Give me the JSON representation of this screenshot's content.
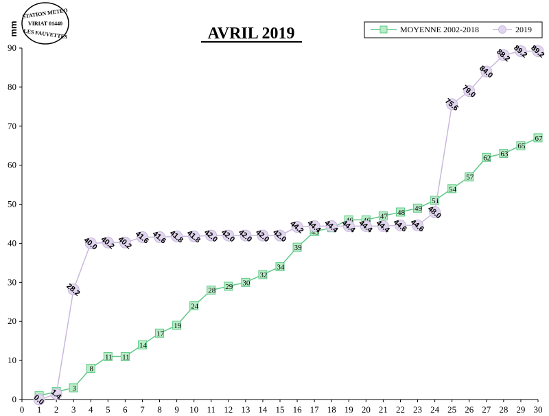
{
  "stamp": {
    "line1": "STATION METEO",
    "line2": "VIRIAT 01440",
    "line3": "LES FAUVETTES"
  },
  "chart_data": {
    "type": "line",
    "title": "AVRIL 2019",
    "xlabel": "",
    "ylabel": "mm",
    "xlim": [
      0,
      30
    ],
    "ylim": [
      0,
      90
    ],
    "x_ticks": [
      0,
      1,
      2,
      3,
      4,
      5,
      6,
      7,
      8,
      9,
      10,
      11,
      12,
      13,
      14,
      15,
      16,
      17,
      18,
      19,
      20,
      21,
      22,
      23,
      24,
      25,
      26,
      27,
      28,
      29,
      30
    ],
    "y_ticks": [
      0,
      10,
      20,
      30,
      40,
      50,
      60,
      70,
      80,
      90
    ],
    "grid": false,
    "legend_position": "top-right",
    "series": [
      {
        "name": "MOYENNE 2002-2018",
        "marker": "square",
        "color": "#5fc987",
        "x": [
          1,
          2,
          3,
          4,
          5,
          6,
          7,
          8,
          9,
          10,
          11,
          12,
          13,
          14,
          15,
          16,
          17,
          18,
          19,
          20,
          21,
          22,
          23,
          24,
          25,
          26,
          27,
          28,
          29,
          30
        ],
        "values": [
          1,
          2,
          3,
          8,
          11,
          11,
          14,
          17,
          19,
          24,
          28,
          29,
          30,
          32,
          34,
          39,
          43,
          44,
          46,
          46,
          47,
          48,
          49,
          51,
          54,
          57,
          62,
          63,
          65,
          67
        ],
        "labels": [
          "1",
          "2",
          "3",
          "8",
          "11",
          "11",
          "14",
          "17",
          "19",
          "24",
          "28",
          "29",
          "30",
          "32",
          "34",
          "39",
          "43",
          "44",
          "46",
          "46",
          "47",
          "48",
          "49",
          "51",
          "54",
          "57",
          "62",
          "63",
          "65",
          "67"
        ]
      },
      {
        "name": "2019",
        "marker": "circle",
        "color": "#c9b8dc",
        "x": [
          1,
          2,
          3,
          4,
          5,
          6,
          7,
          8,
          9,
          10,
          11,
          12,
          13,
          14,
          15,
          16,
          17,
          18,
          19,
          20,
          21,
          22,
          23,
          24,
          25,
          26,
          27,
          28,
          29,
          30
        ],
        "values": [
          0.0,
          1.4,
          28.2,
          40.0,
          40.2,
          40.2,
          41.6,
          41.6,
          41.8,
          41.8,
          42.0,
          42.0,
          42.0,
          42.0,
          42.0,
          44.2,
          44.4,
          44.4,
          44.4,
          44.4,
          44.4,
          44.6,
          44.6,
          48.0,
          75.6,
          79.0,
          84.0,
          88.2,
          89.2,
          89.2
        ],
        "labels": [
          "0.0",
          "1.4",
          "28.2",
          "40.0",
          "40.2",
          "40.2",
          "41.6",
          "41.6",
          "41.8",
          "41.8",
          "42.0",
          "42.0",
          "42.0",
          "42.0",
          "42.0",
          "44.2",
          "44.4",
          "44.4",
          "44.4",
          "44.4",
          "44.4",
          "44.6",
          "44.6",
          "48.0",
          "75.6",
          "79.0",
          "84.0",
          "88.2",
          "89.2",
          "89.2"
        ]
      }
    ]
  }
}
